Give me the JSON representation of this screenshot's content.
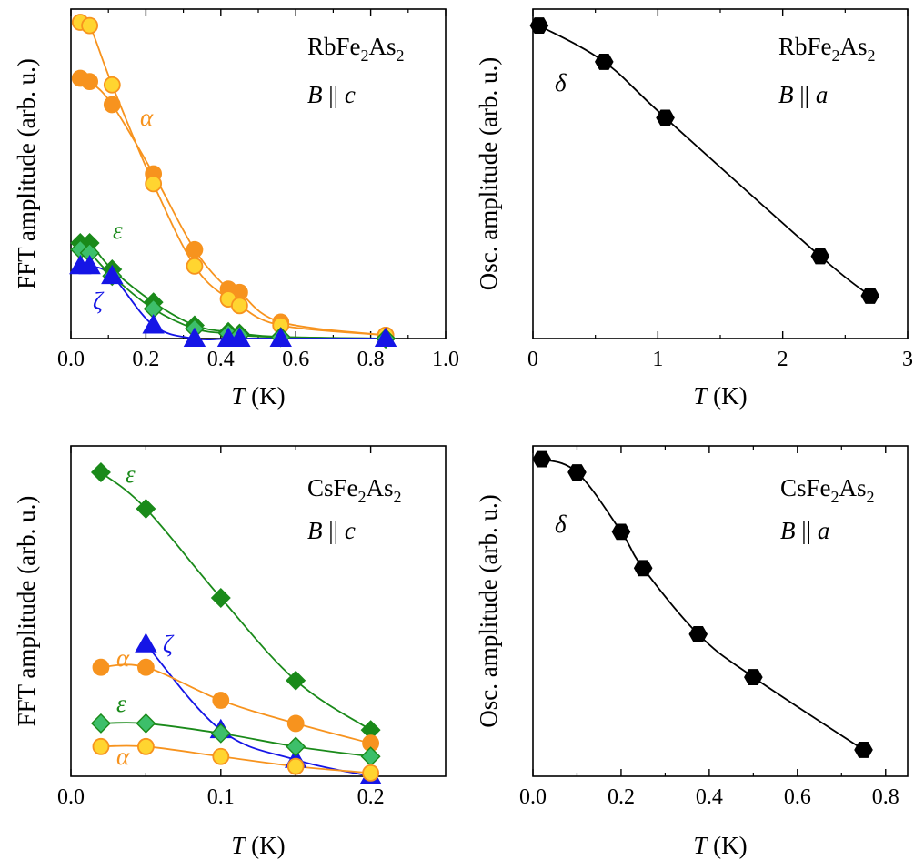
{
  "colors": {
    "orange": "#f7931e",
    "orange_fill": "#f7931e",
    "yellow_fill": "#ffd530",
    "green": "#1a8a1a",
    "green_light": "#3dbf6a",
    "blue": "#1515e6",
    "black": "#000000"
  },
  "chart_data": [
    {
      "id": "p1",
      "type": "line",
      "title": "",
      "material": {
        "pre": "RbFe",
        "sub1": "2",
        "mid": "As",
        "sub2": "2"
      },
      "field": {
        "var": "B",
        "rel": " || ",
        "axis": "c"
      },
      "xlabel": {
        "var": "T",
        "unit": " (K)"
      },
      "ylabel": "FFT amplitude (arb. u.)",
      "xlim": [
        0,
        1.0
      ],
      "ylim": [
        0,
        1.0
      ],
      "xticks": [
        "0.0",
        "0.2",
        "0.4",
        "0.6",
        "0.8",
        "1.0"
      ],
      "series": [
        {
          "name": "α (filled)",
          "label": "α",
          "color": "orange",
          "marker": "circle",
          "fill": "orange_fill",
          "x": [
            0.025,
            0.05,
            0.11,
            0.22,
            0.33,
            0.42,
            0.45,
            0.56,
            0.84
          ],
          "y": [
            0.79,
            0.78,
            0.71,
            0.5,
            0.27,
            0.15,
            0.14,
            0.05,
            0.01
          ]
        },
        {
          "name": "α (open)",
          "label": "",
          "color": "orange",
          "marker": "circle",
          "fill": "yellow_fill",
          "x": [
            0.025,
            0.05,
            0.11,
            0.22,
            0.33,
            0.42,
            0.45,
            0.56,
            0.84
          ],
          "y": [
            0.96,
            0.95,
            0.77,
            0.47,
            0.22,
            0.12,
            0.1,
            0.04,
            0.01
          ]
        },
        {
          "name": "ε (dark)",
          "label": "ε",
          "color": "green",
          "marker": "diamond",
          "fill": "green",
          "x": [
            0.025,
            0.05,
            0.11,
            0.22,
            0.33,
            0.42,
            0.45,
            0.56,
            0.84
          ],
          "y": [
            0.29,
            0.29,
            0.21,
            0.11,
            0.04,
            0.02,
            0.015,
            0.005,
            0.0
          ]
        },
        {
          "name": "ε (light)",
          "label": "",
          "color": "green",
          "marker": "diamond",
          "fill": "green_light",
          "x": [
            0.025,
            0.05,
            0.11,
            0.22,
            0.33,
            0.42,
            0.45,
            0.56,
            0.84
          ],
          "y": [
            0.27,
            0.26,
            0.19,
            0.09,
            0.03,
            0.015,
            0.01,
            0.004,
            0.0
          ]
        },
        {
          "name": "ζ",
          "label": "ζ",
          "color": "blue",
          "marker": "triangle",
          "fill": "blue",
          "x": [
            0.025,
            0.05,
            0.11,
            0.22,
            0.33,
            0.42,
            0.45,
            0.56,
            0.84
          ],
          "y": [
            0.22,
            0.22,
            0.19,
            0.04,
            0.0,
            0.0,
            0.0,
            0.0,
            0.0
          ]
        }
      ]
    },
    {
      "id": "p2",
      "type": "line",
      "material": {
        "pre": "RbFe",
        "sub1": "2",
        "mid": "As",
        "sub2": "2"
      },
      "field": {
        "var": "B",
        "rel": " || ",
        "axis": "a"
      },
      "xlabel": {
        "var": "T",
        "unit": " (K)"
      },
      "ylabel": "Osc. amplitude (arb. u.)",
      "xlim": [
        0,
        3
      ],
      "ylim": [
        0,
        1.0
      ],
      "xticks": [
        "0",
        "1",
        "2",
        "3"
      ],
      "series": [
        {
          "name": "δ",
          "label": "δ",
          "color": "black",
          "marker": "hexagon",
          "fill": "black",
          "x": [
            0.05,
            0.57,
            1.06,
            2.3,
            2.7
          ],
          "y": [
            0.95,
            0.84,
            0.67,
            0.25,
            0.13
          ]
        }
      ]
    },
    {
      "id": "p3",
      "type": "line",
      "material": {
        "pre": "CsFe",
        "sub1": "2",
        "mid": "As",
        "sub2": "2"
      },
      "field": {
        "var": "B",
        "rel": " || ",
        "axis": "c"
      },
      "xlabel": {
        "var": "T",
        "unit": " (K)"
      },
      "ylabel": "FFT amplitude (arb. u.)",
      "xlim": [
        0,
        0.25
      ],
      "ylim": [
        0,
        1.0
      ],
      "xticks": [
        "0.0",
        "0.1",
        "0.2"
      ],
      "series": [
        {
          "name": "ε (dark)",
          "label": "ε",
          "color": "green",
          "marker": "diamond",
          "fill": "green",
          "x": [
            0.02,
            0.05,
            0.1,
            0.15,
            0.2
          ],
          "y": [
            0.92,
            0.81,
            0.54,
            0.29,
            0.14
          ]
        },
        {
          "name": "ζ",
          "label": "ζ",
          "color": "blue",
          "marker": "triangle",
          "fill": "blue",
          "x": [
            0.05,
            0.1,
            0.15,
            0.2
          ],
          "y": [
            0.4,
            0.14,
            0.05,
            0.0
          ]
        },
        {
          "name": "α (filled)",
          "label": "α",
          "color": "orange",
          "marker": "circle",
          "fill": "orange_fill",
          "x": [
            0.02,
            0.05,
            0.1,
            0.15,
            0.2
          ],
          "y": [
            0.33,
            0.33,
            0.23,
            0.16,
            0.1
          ]
        },
        {
          "name": "ε (light)",
          "label": "ε",
          "color": "green",
          "marker": "diamond",
          "fill": "green_light",
          "x": [
            0.02,
            0.05,
            0.1,
            0.15,
            0.2
          ],
          "y": [
            0.16,
            0.16,
            0.13,
            0.09,
            0.06
          ]
        },
        {
          "name": "α (open)",
          "label": "α",
          "color": "orange",
          "marker": "circle",
          "fill": "yellow_fill",
          "x": [
            0.02,
            0.05,
            0.1,
            0.15,
            0.2
          ],
          "y": [
            0.09,
            0.09,
            0.06,
            0.03,
            0.01
          ]
        }
      ]
    },
    {
      "id": "p4",
      "type": "line",
      "material": {
        "pre": "CsFe",
        "sub1": "2",
        "mid": "As",
        "sub2": "2"
      },
      "field": {
        "var": "B",
        "rel": " || ",
        "axis": "a"
      },
      "xlabel": {
        "var": "T",
        "unit": " (K)"
      },
      "ylabel": "Osc. amplitude (arb. u.)",
      "xlim": [
        0,
        0.85
      ],
      "ylim": [
        0,
        1.0
      ],
      "xticks": [
        "0.0",
        "0.2",
        "0.4",
        "0.6",
        "0.8"
      ],
      "series": [
        {
          "name": "δ",
          "label": "δ",
          "color": "black",
          "marker": "hexagon",
          "fill": "black",
          "x": [
            0.02,
            0.1,
            0.2,
            0.25,
            0.375,
            0.5,
            0.75
          ],
          "y": [
            0.96,
            0.92,
            0.74,
            0.63,
            0.43,
            0.3,
            0.08
          ]
        }
      ]
    }
  ]
}
